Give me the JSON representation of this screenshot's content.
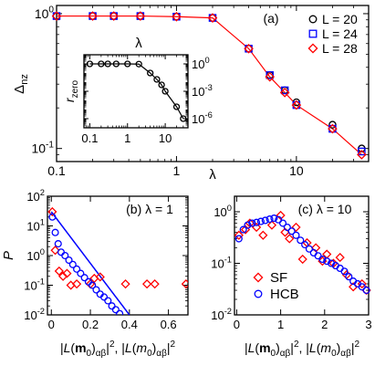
{
  "chart_data": [
    {
      "panel": "a",
      "type": "line",
      "label": "(a)",
      "xlabel": "λ",
      "ylabel": "Δnz",
      "xscale": "log",
      "yscale": "log",
      "xlim": [
        0.1,
        40
      ],
      "ylim": [
        0.08,
        1.15
      ],
      "xticks": [
        {
          "v": 0.1,
          "label": "0.1"
        },
        {
          "v": 1,
          "label": "1"
        },
        {
          "v": 10,
          "label": "10"
        }
      ],
      "yticks": [
        {
          "v": 1,
          "label": "10",
          "sup": "0"
        },
        {
          "v": 0.1,
          "label": "10",
          "sup": "-1"
        }
      ],
      "legend_position": "top-right",
      "series": [
        {
          "name": "L = 20",
          "marker": "circle",
          "color": "#000000",
          "x": [
            0.1,
            0.2,
            0.3,
            0.5,
            1,
            2,
            4,
            6,
            8,
            10,
            20,
            35
          ],
          "y": [
            0.96,
            0.96,
            0.96,
            0.96,
            0.95,
            0.93,
            0.55,
            0.35,
            0.27,
            0.22,
            0.15,
            0.1
          ]
        },
        {
          "name": "L = 24",
          "marker": "square",
          "color": "#0000ff",
          "x": [
            0.1,
            0.2,
            0.3,
            0.5,
            1,
            2,
            4,
            6,
            8,
            10,
            20,
            35
          ],
          "y": [
            0.96,
            0.96,
            0.96,
            0.96,
            0.95,
            0.93,
            0.55,
            0.35,
            0.27,
            0.21,
            0.14,
            0.095
          ]
        },
        {
          "name": "L = 28",
          "marker": "diamond",
          "color": "#ff0000",
          "x": [
            0.1,
            0.2,
            0.3,
            0.5,
            1,
            2,
            4,
            6,
            8,
            10,
            20,
            35
          ],
          "y": [
            0.96,
            0.96,
            0.96,
            0.96,
            0.95,
            0.93,
            0.55,
            0.34,
            0.26,
            0.21,
            0.14,
            0.09
          ]
        }
      ],
      "inset": {
        "type": "line",
        "xlabel": "λ",
        "ylabel": "r_zero",
        "xscale": "log",
        "yscale": "log",
        "xlim": [
          0.07,
          40
        ],
        "ylim": [
          1e-07,
          10
        ],
        "xticks": [
          {
            "v": 0.1,
            "label": "0.1"
          },
          {
            "v": 1,
            "label": "1"
          },
          {
            "v": 10,
            "label": "10"
          }
        ],
        "yticks": [
          {
            "v": 1,
            "label": "10",
            "sup": "0"
          },
          {
            "v": 0.001,
            "label": "10",
            "sup": "-3"
          },
          {
            "v": 1e-06,
            "label": "10",
            "sup": "-6"
          }
        ],
        "series": [
          {
            "marker": "circle",
            "color": "#000000",
            "x": [
              0.1,
              0.2,
              0.3,
              0.5,
              1,
              2,
              4,
              6,
              8,
              10,
              20,
              30
            ],
            "y": [
              1,
              1,
              1,
              1,
              1,
              0.95,
              0.1,
              0.02,
              0.005,
              0.001,
              2e-05,
              1e-06
            ]
          }
        ]
      }
    },
    {
      "panel": "b",
      "type": "scatter",
      "label": "(b) λ = 1",
      "ylabel": "P",
      "xlabel": "|L(m0)αβ|², |L(m0)αβ|²",
      "yscale": "log",
      "xlim": [
        -0.02,
        0.7
      ],
      "ylim": [
        0.01,
        100
      ],
      "xticks": [
        {
          "v": 0,
          "label": "0"
        },
        {
          "v": 0.2,
          "label": "0.2"
        },
        {
          "v": 0.4,
          "label": "0.4"
        },
        {
          "v": 0.6,
          "label": "0.6"
        }
      ],
      "yticks": [
        {
          "v": 100,
          "label": "10",
          "sup": "2"
        },
        {
          "v": 10,
          "label": "10",
          "sup": "1"
        },
        {
          "v": 1,
          "label": "10",
          "sup": "0"
        },
        {
          "v": 0.1,
          "label": "10",
          "sup": "-1"
        },
        {
          "v": 0.01,
          "label": "10",
          "sup": "-2"
        }
      ],
      "fit_line": {
        "color": "#0000ff",
        "x": [
          0,
          0.4
        ],
        "y": [
          30,
          0.01
        ]
      },
      "series": [
        {
          "name": "SF",
          "marker": "diamond",
          "color": "#ff0000",
          "x": [
            0.005,
            0.02,
            0.04,
            0.06,
            0.08,
            0.1,
            0.13,
            0.2,
            0.22,
            0.25,
            0.38,
            0.49,
            0.53,
            0.69
          ],
          "y": [
            30,
            1.5,
            0.3,
            0.2,
            0.25,
            0.1,
            0.11,
            0.11,
            0.17,
            0.19,
            0.11,
            0.11,
            0.11,
            0.11
          ]
        },
        {
          "name": "HCB",
          "marker": "circle",
          "color": "#0000ff",
          "x": [
            0.005,
            0.02,
            0.035,
            0.05,
            0.07,
            0.09,
            0.11,
            0.13,
            0.15,
            0.17,
            0.19,
            0.21,
            0.23,
            0.25,
            0.27,
            0.29,
            0.31,
            0.33,
            0.35
          ],
          "y": [
            20,
            6,
            2.5,
            1.3,
            1.0,
            0.7,
            0.5,
            0.35,
            0.25,
            0.18,
            0.13,
            0.1,
            0.07,
            0.05,
            0.04,
            0.03,
            0.02,
            0.015,
            0.011
          ]
        }
      ]
    },
    {
      "panel": "c",
      "type": "scatter",
      "label": "(c) λ = 10",
      "xlabel": "|L(m0)αβ|², |L(m0)αβ|²",
      "yscale": "log",
      "xlim": [
        -0.05,
        3
      ],
      "ylim": [
        0.01,
        2
      ],
      "xticks": [
        {
          "v": 0,
          "label": "0"
        },
        {
          "v": 1,
          "label": "1"
        },
        {
          "v": 2,
          "label": "2"
        },
        {
          "v": 3,
          "label": "3"
        }
      ],
      "yticks": [
        {
          "v": 1,
          "label": "10",
          "sup": "0"
        },
        {
          "v": 0.1,
          "label": "10",
          "sup": "-1"
        },
        {
          "v": 0.01,
          "label": "10",
          "sup": "-2"
        }
      ],
      "legend_position": "bottom-left",
      "series": [
        {
          "name": "SF",
          "marker": "diamond",
          "color": "#ff0000",
          "x": [
            0.05,
            0.2,
            0.3,
            0.45,
            0.6,
            0.8,
            1.0,
            1.1,
            1.2,
            1.35,
            1.5,
            1.6,
            1.8,
            1.95,
            2.05,
            2.2,
            2.35,
            2.5,
            2.65,
            2.85,
            2.95
          ],
          "y": [
            0.35,
            0.45,
            0.6,
            0.5,
            0.35,
            0.55,
            0.85,
            0.4,
            0.3,
            0.5,
            0.12,
            0.25,
            0.2,
            0.11,
            0.15,
            0.1,
            0.13,
            0.06,
            0.035,
            0.04,
            0.03
          ]
        },
        {
          "name": "HCB",
          "marker": "circle",
          "color": "#0000ff",
          "x": [
            0.05,
            0.15,
            0.25,
            0.35,
            0.45,
            0.55,
            0.65,
            0.75,
            0.85,
            0.95,
            1.05,
            1.15,
            1.25,
            1.35,
            1.45,
            1.55,
            1.65,
            1.75,
            1.85,
            1.95,
            2.05,
            2.15,
            2.25,
            2.35,
            2.45,
            2.55,
            2.65,
            2.75,
            2.85,
            2.95
          ],
          "y": [
            0.3,
            0.45,
            0.55,
            0.6,
            0.62,
            0.65,
            0.68,
            0.72,
            0.75,
            0.7,
            0.6,
            0.5,
            0.42,
            0.35,
            0.28,
            0.23,
            0.19,
            0.16,
            0.14,
            0.12,
            0.11,
            0.1,
            0.09,
            0.08,
            0.07,
            0.055,
            0.045,
            0.04,
            0.035,
            0.03
          ]
        }
      ]
    }
  ]
}
